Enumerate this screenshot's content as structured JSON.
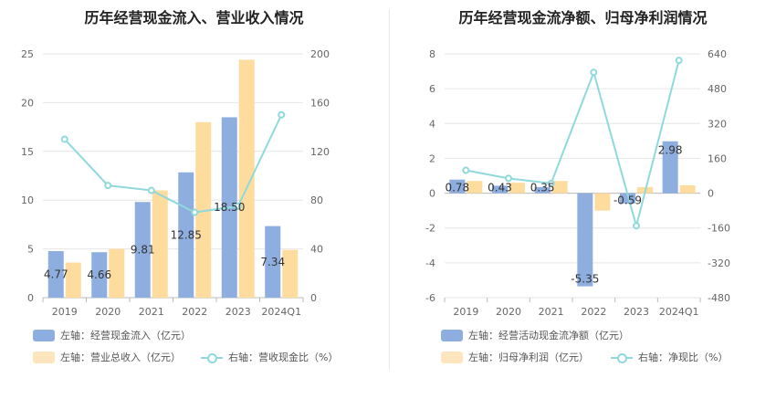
{
  "chart_data": [
    {
      "type": "bar",
      "title": "历年经营现金流入、营业收入情况",
      "categories": [
        "2019",
        "2020",
        "2021",
        "2022",
        "2023",
        "2024Q1"
      ],
      "y_left_ticks": [
        "0",
        "5",
        "10",
        "15",
        "20",
        "25"
      ],
      "y_right_ticks": [
        "0",
        "40",
        "80",
        "120",
        "160",
        "200"
      ],
      "ylim_left": [
        0,
        25
      ],
      "ylim_right": [
        0,
        200
      ],
      "series": [
        {
          "name": "左轴：经营现金流入（亿元）",
          "type": "bar",
          "axis": "left",
          "color": "#8eaedf",
          "values": [
            4.77,
            4.66,
            9.81,
            12.85,
            18.5,
            7.34
          ],
          "labels": [
            "4.77",
            "4.66",
            "9.81",
            "12.85",
            "18.50",
            "7.34"
          ]
        },
        {
          "name": "左轴：营业总收入（亿元）",
          "type": "bar",
          "axis": "left",
          "color": "#fddc9d",
          "values": [
            3.6,
            5.0,
            11.0,
            18.0,
            24.4,
            4.9
          ]
        },
        {
          "name": "右轴：营收现金比（%）",
          "type": "line",
          "axis": "right",
          "color": "#8fd9dc",
          "values": [
            130,
            92,
            88,
            70,
            75,
            150
          ]
        }
      ],
      "grid": true
    },
    {
      "type": "bar",
      "title": "历年经营现金流净额、归母净利润情况",
      "categories": [
        "2019",
        "2020",
        "2021",
        "2022",
        "2023",
        "2024Q1"
      ],
      "y_left_ticks": [
        "-6",
        "-4",
        "-2",
        "0",
        "2",
        "4",
        "6",
        "8"
      ],
      "y_right_ticks": [
        "-480",
        "-320",
        "-160",
        "0",
        "160",
        "320",
        "480",
        "640"
      ],
      "ylim_left": [
        -6,
        8
      ],
      "ylim_right": [
        -480,
        640
      ],
      "series": [
        {
          "name": "左轴：经营活动现金流净额（亿元）",
          "type": "bar",
          "axis": "left",
          "color": "#8eaedf",
          "values": [
            0.78,
            0.43,
            0.35,
            -5.35,
            -0.59,
            2.98
          ],
          "labels": [
            "0.78",
            "0.43",
            "0.35",
            "-5.35",
            "-0.59",
            "2.98"
          ]
        },
        {
          "name": "左轴：归母净利润（亿元）",
          "type": "bar",
          "axis": "left",
          "color": "#fddc9d",
          "values": [
            0.7,
            0.6,
            0.7,
            -1.0,
            0.35,
            0.45
          ]
        },
        {
          "name": "右轴：净现比（%）",
          "type": "line",
          "axis": "right",
          "color": "#8fd9dc",
          "values": [
            105,
            68,
            45,
            555,
            -150,
            610
          ]
        }
      ],
      "grid": true
    }
  ]
}
